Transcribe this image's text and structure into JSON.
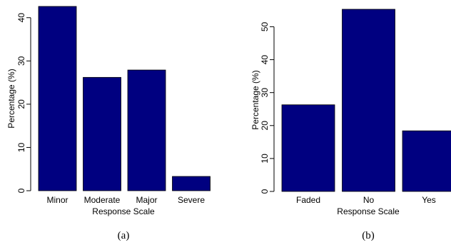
{
  "chart_data": [
    {
      "type": "bar",
      "caption": "(a)",
      "xlabel": "Response Scale",
      "ylabel": "Percentage (%)",
      "categories": [
        "Minor",
        "Moderate",
        "Major",
        "Severe"
      ],
      "values": [
        42.6,
        26.2,
        27.9,
        3.3
      ],
      "ylim": [
        0,
        42.6
      ],
      "yticks": [
        0,
        10,
        20,
        30,
        40
      ],
      "bar_color": "#000080",
      "grid": false,
      "legend": "none"
    },
    {
      "type": "bar",
      "caption": "(b)",
      "xlabel": "Response Scale",
      "ylabel": "Percentage (%)",
      "categories": [
        "Faded",
        "No",
        "Yes"
      ],
      "values": [
        26.3,
        55.3,
        18.4
      ],
      "ylim": [
        0,
        55.3
      ],
      "yticks": [
        0,
        10,
        20,
        30,
        40,
        50
      ],
      "bar_color": "#000080",
      "grid": false,
      "legend": "none"
    }
  ]
}
